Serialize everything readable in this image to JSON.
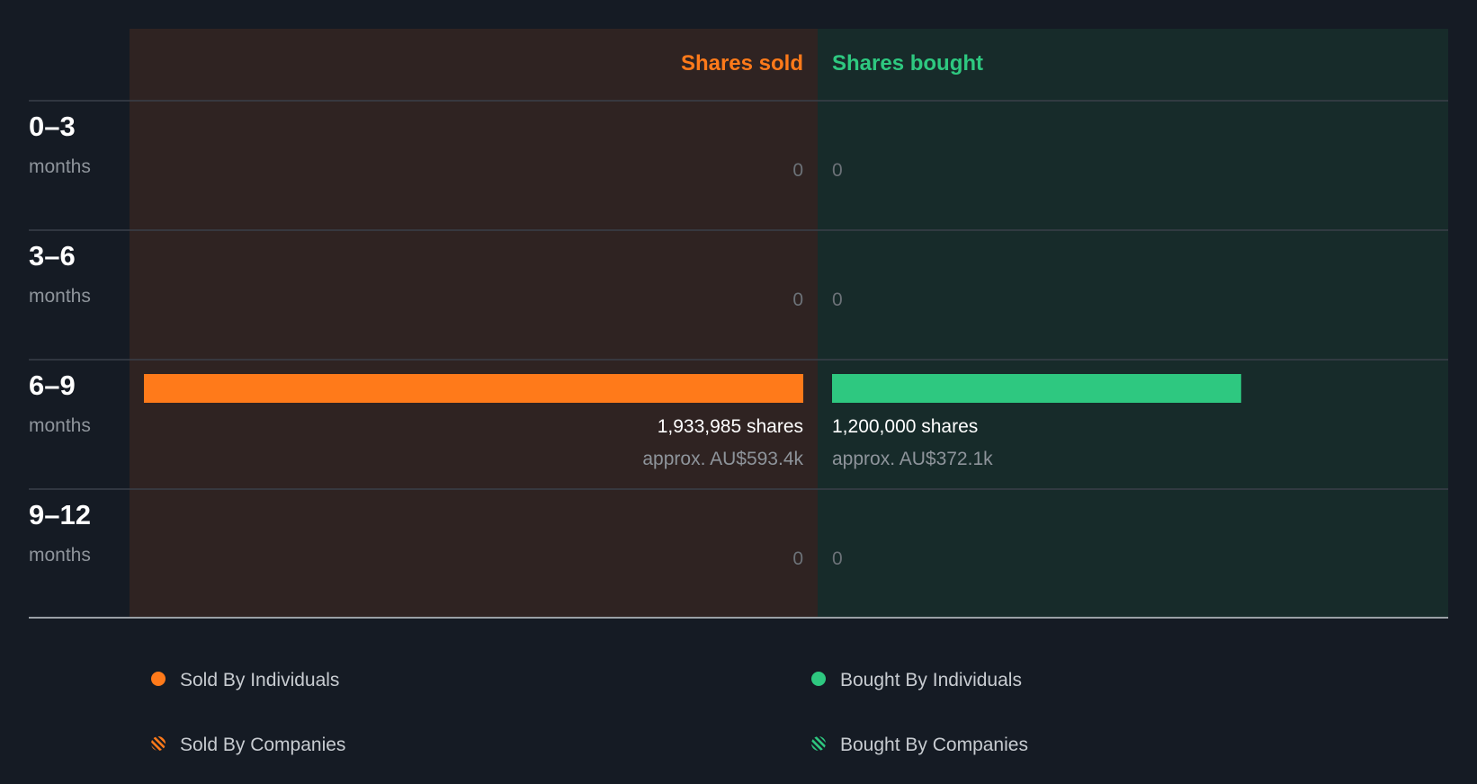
{
  "colors": {
    "background": "#151b24",
    "sold_panel": "#2f2322",
    "bought_panel": "#172b2a",
    "sold": "#ff7a1a",
    "bought": "#2ec880"
  },
  "chart_data": {
    "type": "bar",
    "columns": {
      "sold": "Shares sold",
      "bought": "Shares bought"
    },
    "unit_label": "months",
    "categories": [
      "0–3",
      "3–6",
      "6–9",
      "9–12"
    ],
    "series": [
      {
        "name": "Shares sold",
        "values": [
          0,
          0,
          1933985,
          0
        ],
        "labels": [
          "0",
          "0",
          "1,933,985 shares",
          "0"
        ],
        "approx": [
          "",
          "",
          "approx. AU$593.4k",
          ""
        ]
      },
      {
        "name": "Shares bought",
        "values": [
          0,
          0,
          1200000,
          0
        ],
        "labels": [
          "0",
          "0",
          "1,200,000 shares",
          "0"
        ],
        "approx": [
          "",
          "",
          "approx. AU$372.1k",
          ""
        ]
      }
    ],
    "legend": [
      {
        "label": "Sold By Individuals",
        "marker": "dot",
        "color": "#ff7a1a"
      },
      {
        "label": "Bought By Individuals",
        "marker": "dot",
        "color": "#2ec880"
      },
      {
        "label": "Sold By Companies",
        "marker": "striped",
        "color": "#ff7a1a"
      },
      {
        "label": "Bought By Companies",
        "marker": "striped",
        "color": "#2ec880"
      }
    ],
    "legend_position": "bottom",
    "grid": true
  }
}
